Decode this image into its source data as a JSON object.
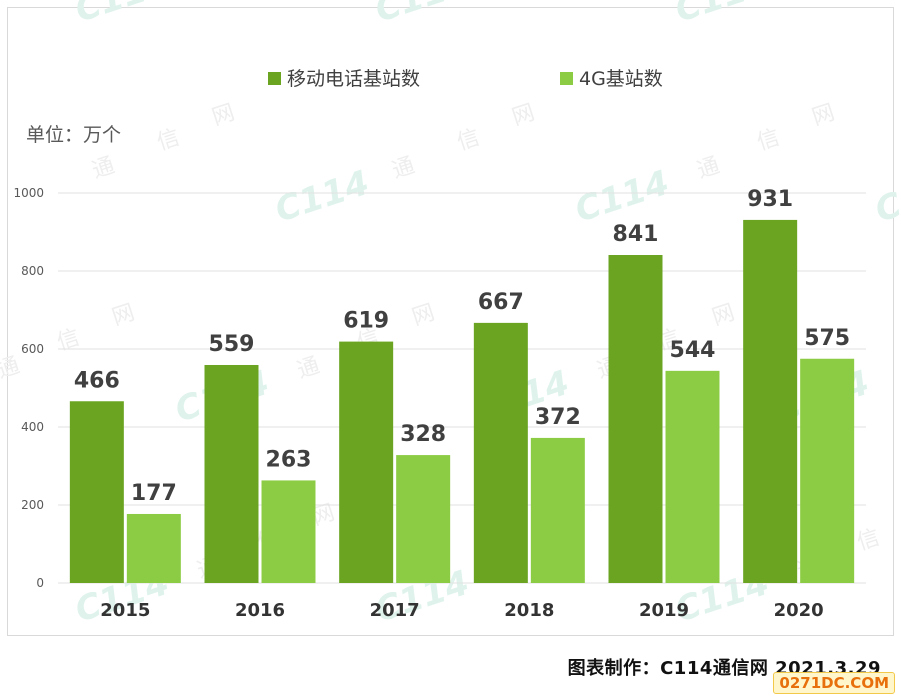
{
  "chart_data": {
    "type": "bar",
    "categories": [
      "2015",
      "2016",
      "2017",
      "2018",
      "2019",
      "2020"
    ],
    "series": [
      {
        "name": "移动电话基站数",
        "values": [
          466,
          559,
          619,
          667,
          841,
          931
        ],
        "color": "#6aa421"
      },
      {
        "name": "4G基站数",
        "values": [
          177,
          263,
          328,
          372,
          544,
          575
        ],
        "color": "#8ccc44"
      }
    ],
    "unit_label": "单位：万个",
    "ylim": [
      0,
      1000
    ],
    "yticks": [
      0,
      200,
      400,
      600,
      800,
      1000
    ],
    "grid": true,
    "legend": "top-center"
  },
  "credit": "图表制作：C114通信网  2021.3.29",
  "watermark": {
    "logo": "C114",
    "text_chars": [
      "通",
      "信",
      "网"
    ]
  },
  "corner_logo": "0271DC.COM",
  "colors": {
    "grid": "#e0e0e0",
    "axis_text": "#595959",
    "label_text": "#404040"
  }
}
